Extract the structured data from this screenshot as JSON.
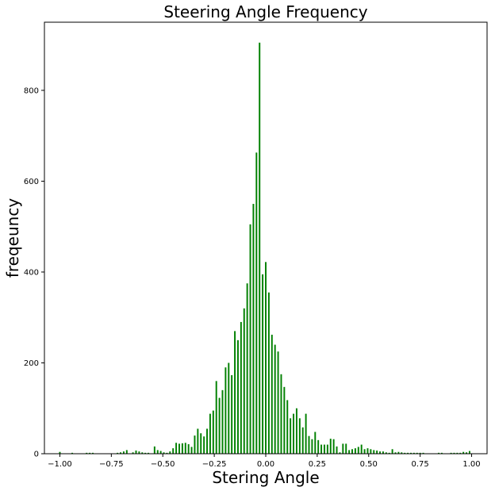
{
  "chart_data": {
    "type": "bar",
    "title": "Steering Angle Frequency",
    "xlabel": "Stering Angle",
    "ylabel": "freqeuncy",
    "xlim": [
      -1.075,
      1.075
    ],
    "ylim": [
      0,
      950
    ],
    "xticks": [
      -1.0,
      -0.75,
      -0.5,
      -0.25,
      0.0,
      0.25,
      0.5,
      0.75,
      1.0
    ],
    "xtick_labels": [
      "−1.00",
      "−0.75",
      "−0.50",
      "−0.25",
      "0.00",
      "0.25",
      "0.50",
      "0.75",
      "1.00"
    ],
    "yticks": [
      0,
      200,
      400,
      600,
      800
    ],
    "ytick_labels": [
      "0",
      "200",
      "400",
      "600",
      "800"
    ],
    "bar_width": 0.0075,
    "bar_color": "#008000",
    "grid": false,
    "series": [
      {
        "x": [
          -1.0,
          -0.94,
          -0.87,
          -0.855,
          -0.84,
          -0.72,
          -0.705,
          -0.69,
          -0.675,
          -0.645,
          -0.63,
          -0.615,
          -0.6,
          -0.585,
          -0.57,
          -0.54,
          -0.525,
          -0.51,
          -0.495,
          -0.48,
          -0.465,
          -0.45,
          -0.435,
          -0.42,
          -0.405,
          -0.39,
          -0.375,
          -0.36,
          -0.345,
          -0.33,
          -0.315,
          -0.3,
          -0.285,
          -0.27,
          -0.255,
          -0.24,
          -0.225,
          -0.21,
          -0.195,
          -0.18,
          -0.165,
          -0.15,
          -0.135,
          -0.12,
          -0.105,
          -0.09,
          -0.075,
          -0.06,
          -0.045,
          -0.03,
          -0.015,
          0.0,
          0.015,
          0.03,
          0.045,
          0.06,
          0.075,
          0.09,
          0.105,
          0.12,
          0.135,
          0.15,
          0.165,
          0.18,
          0.195,
          0.21,
          0.225,
          0.24,
          0.255,
          0.27,
          0.285,
          0.3,
          0.315,
          0.33,
          0.345,
          0.36,
          0.375,
          0.39,
          0.405,
          0.42,
          0.435,
          0.45,
          0.465,
          0.48,
          0.495,
          0.51,
          0.525,
          0.54,
          0.555,
          0.57,
          0.585,
          0.6,
          0.615,
          0.63,
          0.645,
          0.66,
          0.675,
          0.69,
          0.705,
          0.72,
          0.735,
          0.75,
          0.765,
          0.84,
          0.855,
          0.9,
          0.915,
          0.93,
          0.945,
          0.96,
          0.975,
          0.99
        ],
        "values": [
          4,
          2,
          2,
          2,
          2,
          2,
          3,
          5,
          8,
          3,
          7,
          5,
          3,
          2,
          2,
          16,
          8,
          6,
          3,
          2,
          5,
          12,
          24,
          22,
          23,
          24,
          21,
          15,
          40,
          55,
          45,
          38,
          55,
          88,
          95,
          160,
          123,
          140,
          190,
          200,
          173,
          270,
          250,
          290,
          320,
          375,
          505,
          550,
          663,
          905,
          395,
          422,
          355,
          262,
          240,
          225,
          175,
          147,
          118,
          78,
          88,
          100,
          78,
          58,
          88,
          39,
          32,
          48,
          30,
          20,
          20,
          20,
          33,
          32,
          16,
          3,
          22,
          22,
          8,
          10,
          12,
          15,
          20,
          10,
          12,
          10,
          8,
          7,
          5,
          5,
          3,
          2,
          10,
          3,
          4,
          3,
          2,
          2,
          2,
          2,
          2,
          2,
          2,
          2,
          2,
          2,
          2,
          2,
          2,
          4,
          3,
          6
        ]
      }
    ]
  }
}
